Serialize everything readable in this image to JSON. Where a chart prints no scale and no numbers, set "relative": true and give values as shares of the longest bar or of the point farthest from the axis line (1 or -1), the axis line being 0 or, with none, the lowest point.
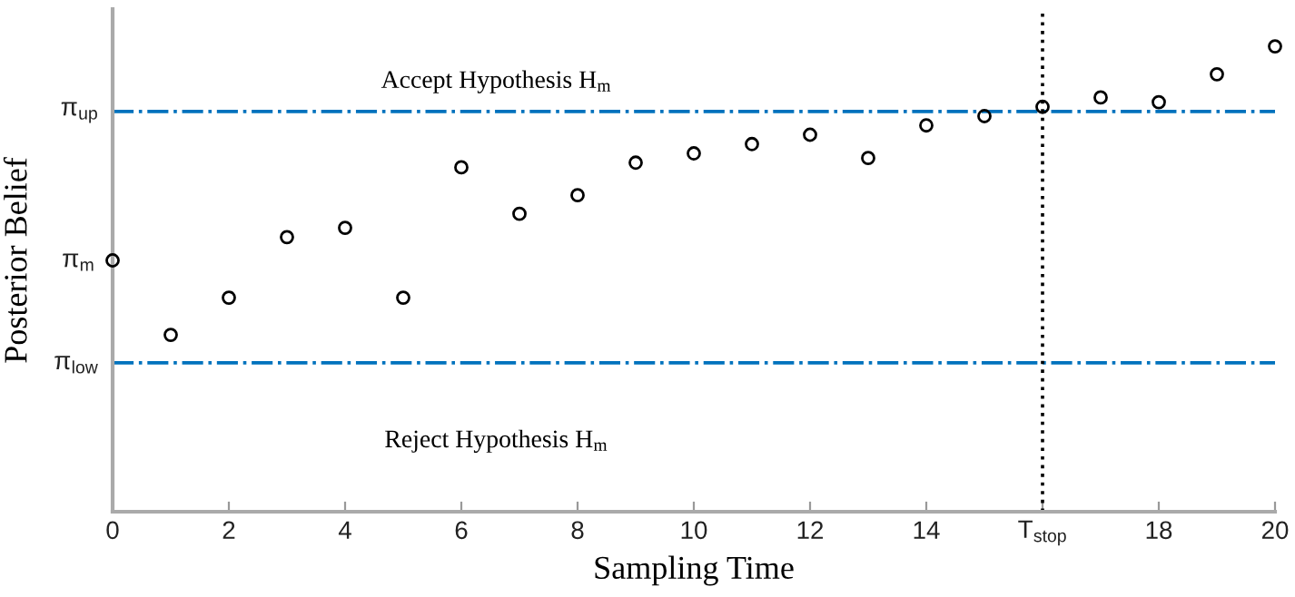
{
  "chart_data": {
    "type": "scatter",
    "relative": true,
    "xlabel": "Sampling Time",
    "ylabel": "Posterior Belief",
    "x": [
      0,
      1,
      2,
      3,
      4,
      5,
      6,
      7,
      8,
      9,
      10,
      11,
      12,
      13,
      14,
      15,
      16,
      17,
      18,
      19,
      20
    ],
    "series": [
      {
        "color": "#000000",
        "values": [
          0.54,
          0.38,
          0.46,
          0.59,
          0.61,
          0.46,
          0.74,
          0.64,
          0.68,
          0.75,
          0.77,
          0.79,
          0.81,
          0.76,
          0.83,
          0.85,
          0.87,
          0.89,
          0.88,
          0.94,
          1
        ]
      }
    ],
    "marker": "circle",
    "xlim": [
      0,
      20
    ],
    "xticks": [
      0,
      2,
      4,
      6,
      8,
      10,
      12,
      14,
      {
        "value": 16,
        "label": "T$_{stop}$"
      },
      18,
      20
    ],
    "ref_lines": [
      {
        "axis": "y",
        "value": 0.86,
        "label": "π$_{up}$",
        "color": "#0072bd",
        "line_style": "dashdot"
      },
      {
        "axis": "y",
        "value": 0.32,
        "label": "π$_{low}$",
        "color": "#0072bd",
        "line_style": "dashdot"
      },
      {
        "axis": "x",
        "value": 16,
        "color": "#000000",
        "line_style": "dotted"
      }
    ],
    "annotations": [
      "Accept Hypothesis H$_{m}$",
      "Reject Hypothesis H$_{m}$",
      {
        "text": "π$_{m}$",
        "x": 0,
        "y": 0.54
      }
    ],
    "grid": false,
    "legend": false
  }
}
